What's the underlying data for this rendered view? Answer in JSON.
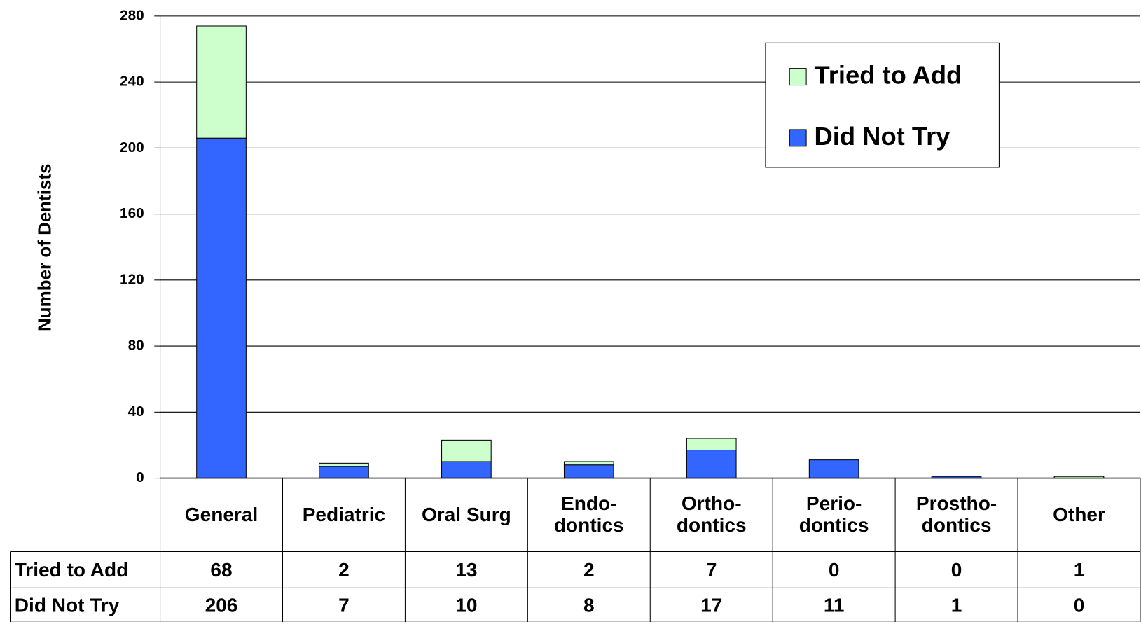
{
  "chart_data": {
    "type": "stacked_bar",
    "y_label": "Number of Dentists",
    "categories": [
      "General",
      "Pediatric",
      "Oral Surg",
      "Endo-\ndontics",
      "Ortho-\ndontics",
      "Perio-\ndontics",
      "Prostho-\ndontics",
      "Other"
    ],
    "series": [
      {
        "name": "Tried to Add",
        "color": "#ccffcc",
        "values": [
          68,
          2,
          13,
          2,
          7,
          0,
          0,
          1
        ]
      },
      {
        "name": "Did Not Try",
        "color": "#3366ff",
        "values": [
          206,
          7,
          10,
          8,
          17,
          11,
          1,
          0
        ]
      }
    ],
    "ylim": [
      0,
      280
    ],
    "yticks": [
      0,
      40,
      80,
      120,
      160,
      200,
      240,
      280
    ],
    "grid": true,
    "legend": "upper right",
    "data_table": true
  }
}
